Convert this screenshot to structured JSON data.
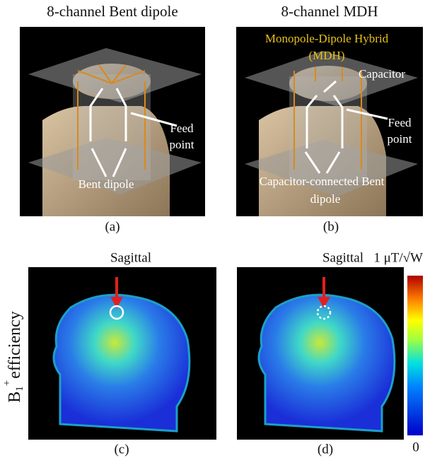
{
  "panels": [
    {
      "title": "8-channel Bent dipole",
      "label": "(a)",
      "annotations": [
        "Feed",
        "point",
        "Bent dipole"
      ]
    },
    {
      "title": "8-channel MDH",
      "label": "(b)",
      "annotations": [
        "Monopole-Dipole Hybrid",
        "(MDH)",
        "Capacitor",
        "Feed",
        "point",
        "Capacitor-connected Bent",
        "dipole"
      ]
    },
    {
      "title": "Sagittal",
      "label": "(c)"
    },
    {
      "title": "Sagittal",
      "label": "(d)"
    }
  ],
  "y_label": {
    "base": "B",
    "subscript": "1",
    "superscript": "+",
    "rest": "efficiency"
  },
  "colorbar": {
    "max_label": "1 μT/√W",
    "min_label": "0"
  }
}
